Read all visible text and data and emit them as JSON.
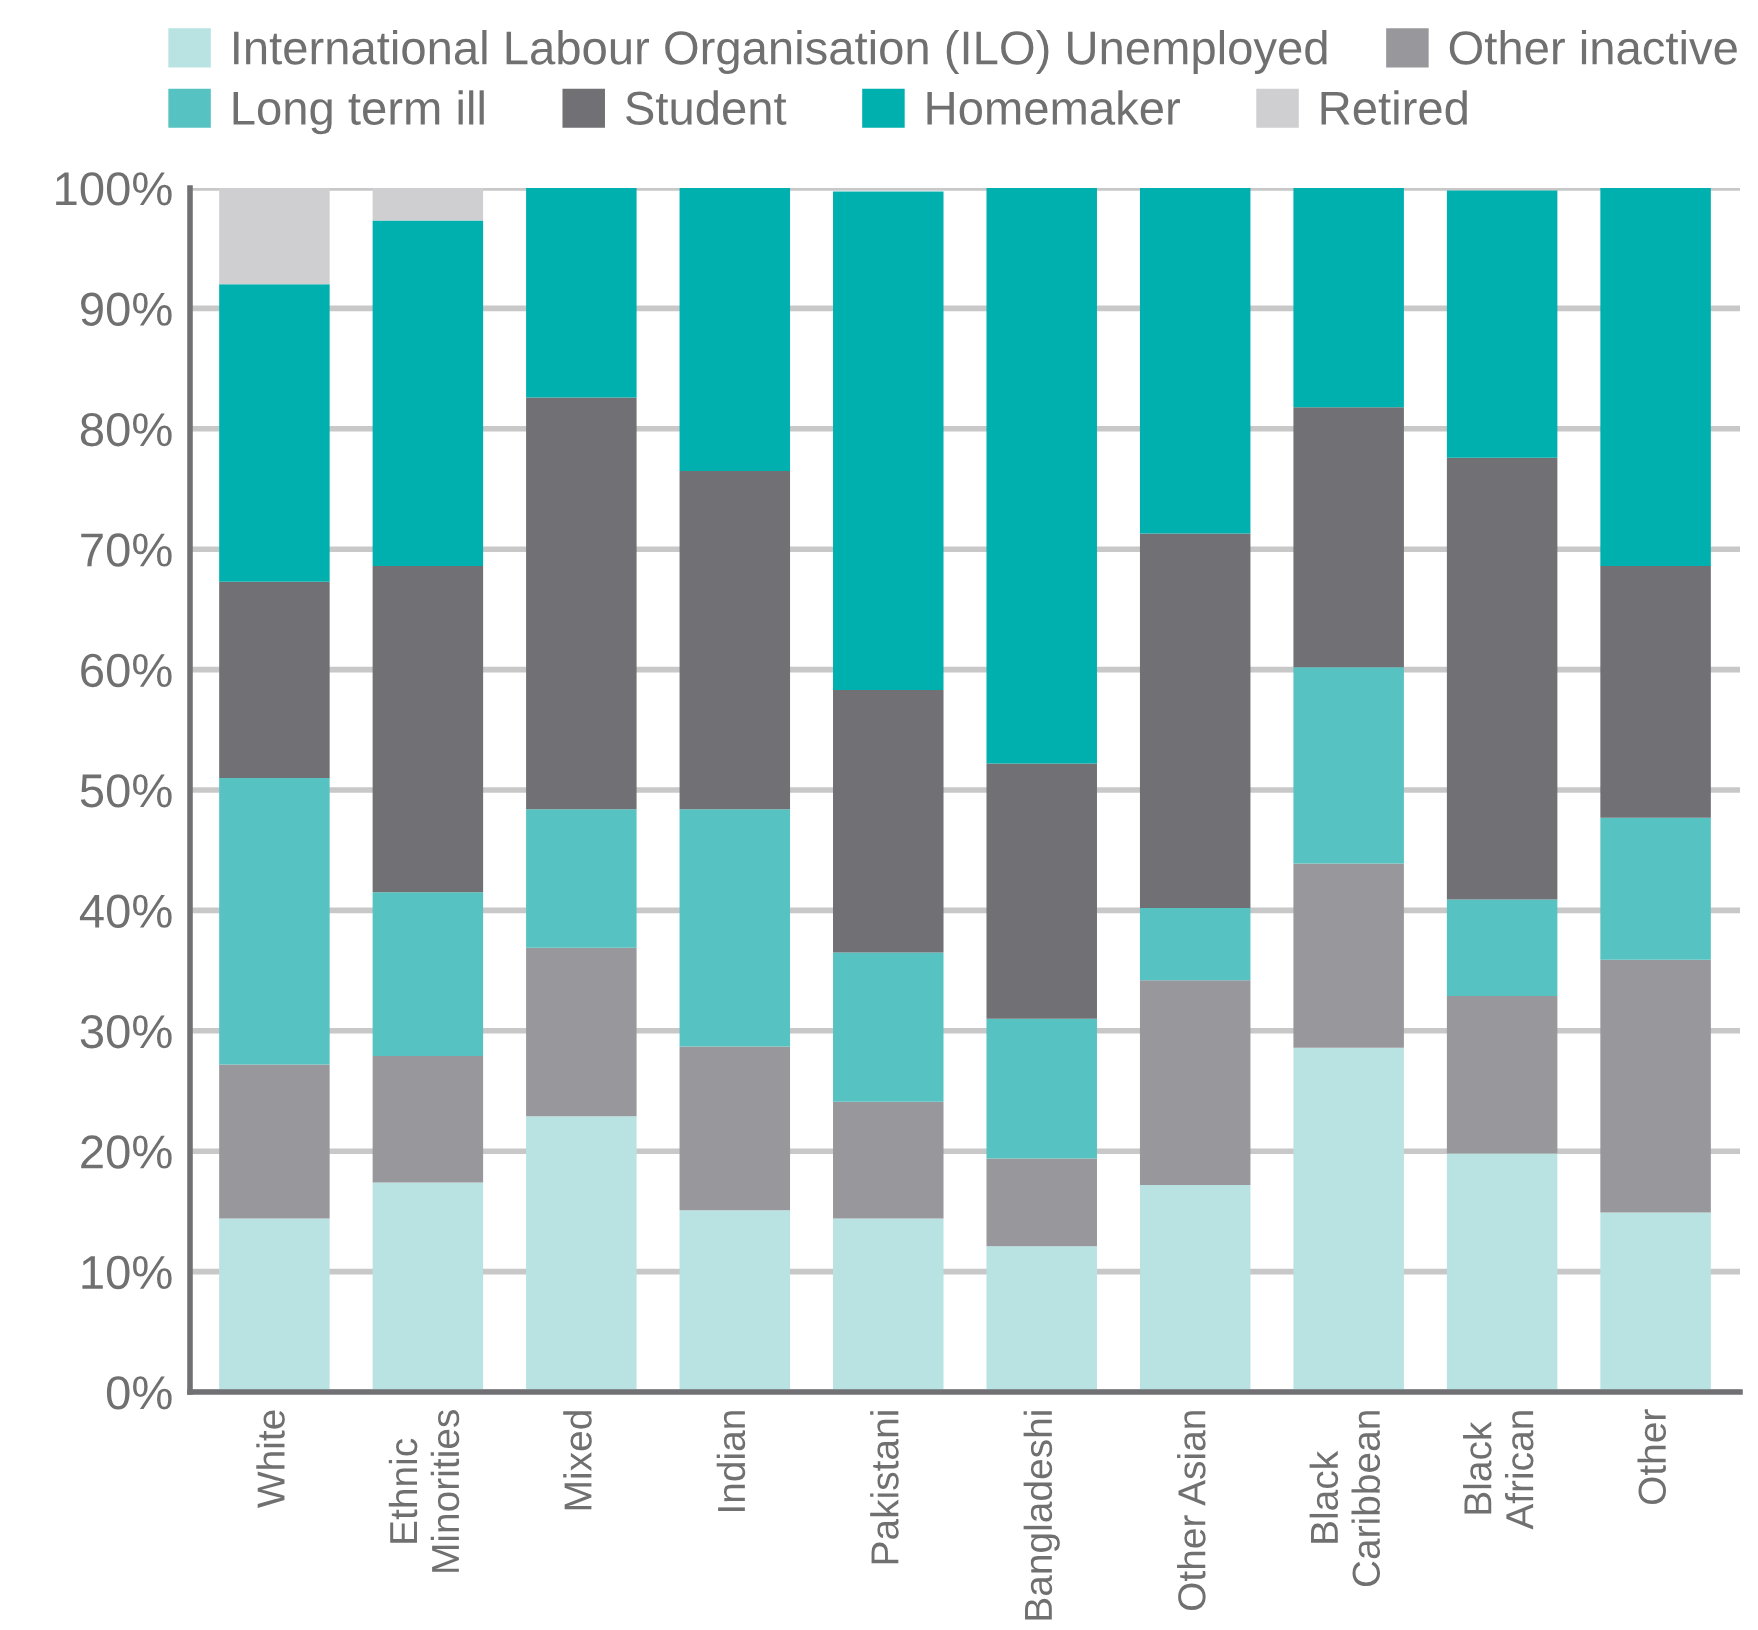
{
  "chart_data": {
    "type": "bar",
    "stacked": true,
    "categories": [
      "White",
      "Ethnic\nMinorities",
      "Mixed",
      "Indian",
      "Pakistani",
      "Bangladeshi",
      "Other Asian",
      "Black\nCaribbean",
      "Black\nAfrican",
      "Other"
    ],
    "series": [
      {
        "name": "International Labour Organisation (ILO) Unemployed",
        "color": "#b9e3e2",
        "values": [
          14.4,
          17.4,
          22.9,
          15.1,
          14.4,
          12.1,
          17.2,
          28.6,
          19.8,
          14.9
        ]
      },
      {
        "name": "Other inactive",
        "color": "#98979b",
        "values": [
          12.8,
          10.5,
          14.0,
          13.6,
          9.7,
          7.3,
          17.0,
          15.3,
          13.1,
          21.0
        ]
      },
      {
        "name": "Long term ill",
        "color": "#56c3c2",
        "values": [
          23.8,
          13.6,
          11.5,
          19.7,
          12.4,
          11.6,
          6.0,
          16.3,
          8.0,
          11.8
        ]
      },
      {
        "name": "Student",
        "color": "#717075",
        "values": [
          16.3,
          27.1,
          34.2,
          28.1,
          21.8,
          21.2,
          31.1,
          21.6,
          36.7,
          20.9
        ]
      },
      {
        "name": "Homemaker",
        "color": "#00b0ae",
        "values": [
          24.7,
          28.7,
          17.4,
          23.5,
          41.4,
          47.8,
          28.7,
          18.2,
          22.2,
          31.4
        ]
      },
      {
        "name": "Retired",
        "color": "#cfcfd1",
        "values": [
          8.0,
          2.7,
          0,
          0,
          null,
          0,
          0,
          0,
          null,
          0
        ]
      }
    ],
    "ylim": [
      0,
      100
    ],
    "yticks": [
      {
        "value": 0,
        "label": "0%"
      },
      {
        "value": 10,
        "label": "10%"
      },
      {
        "value": 20,
        "label": "20%"
      },
      {
        "value": 30,
        "label": "30%"
      },
      {
        "value": 40,
        "label": "40%"
      },
      {
        "value": 50,
        "label": "50%"
      },
      {
        "value": 60,
        "label": "60%"
      },
      {
        "value": 70,
        "label": "70%"
      },
      {
        "value": 80,
        "label": "80%"
      },
      {
        "value": 90,
        "label": "90%"
      },
      {
        "value": 100,
        "label": "100%"
      }
    ],
    "grid": "y",
    "legend": "top"
  }
}
